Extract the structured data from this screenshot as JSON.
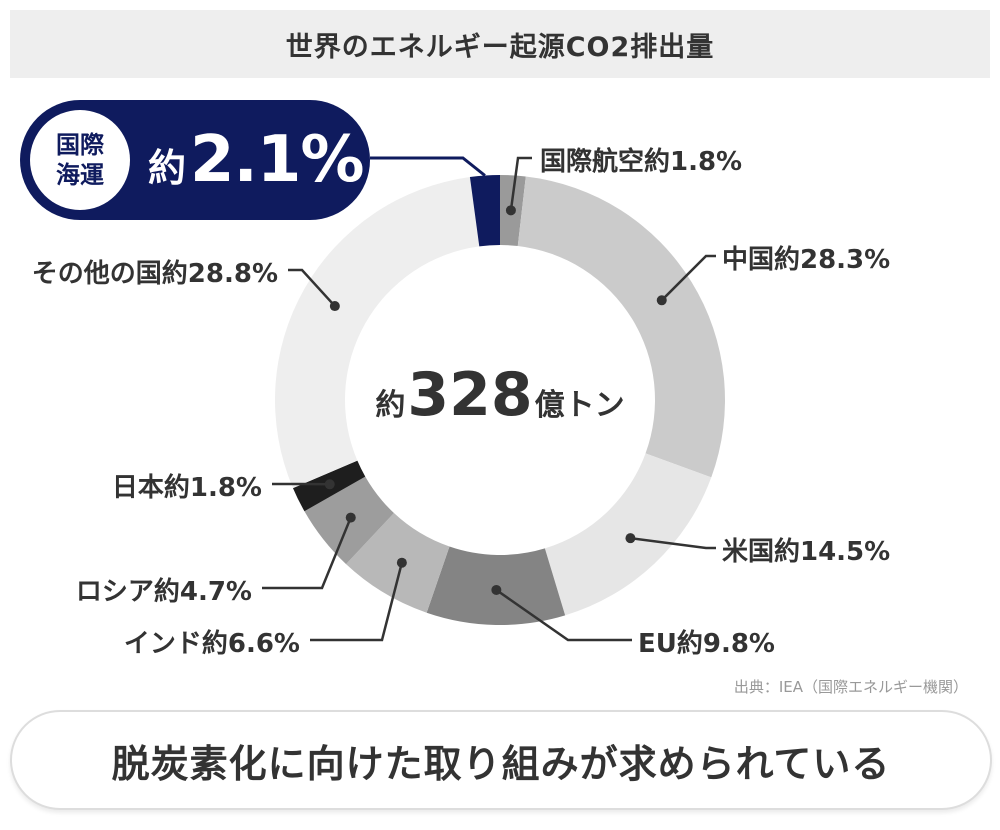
{
  "title": "世界のエネルギー起源CO2排出量",
  "center": {
    "prefix": "約",
    "value": "328",
    "unit": "億トン"
  },
  "highlight": {
    "label_line1": "国際",
    "label_line2": "海運",
    "prefix": "約",
    "value": "2.1%"
  },
  "source": "出典：IEA（国際エネルギー機関）",
  "footer": "脱炭素化に向けた取り組みが求められている",
  "colors": {
    "navy": "#0f1b5e"
  },
  "chart_data": {
    "type": "pie",
    "title": "世界のエネルギー起源CO2排出量",
    "total": "約328億トン",
    "slices": [
      {
        "name": "国際航空",
        "label": "国際航空約1.8%",
        "value": 1.8,
        "color": "#9a9a9a"
      },
      {
        "name": "中国",
        "label": "中国約28.3%",
        "value": 28.3,
        "color": "#cbcbcb"
      },
      {
        "name": "米国",
        "label": "米国約14.5%",
        "value": 14.5,
        "color": "#e6e6e6"
      },
      {
        "name": "EU",
        "label": "EU約9.8%",
        "value": 9.8,
        "color": "#848484"
      },
      {
        "name": "インド",
        "label": "インド約6.6%",
        "value": 6.6,
        "color": "#b8b8b8"
      },
      {
        "name": "ロシア",
        "label": "ロシア約4.7%",
        "value": 4.7,
        "color": "#9d9d9d"
      },
      {
        "name": "日本",
        "label": "日本約1.8%",
        "value": 1.8,
        "color": "#1e1e1e"
      },
      {
        "name": "その他の国",
        "label": "その他の国約28.8%",
        "value": 28.8,
        "color": "#eeeeee"
      },
      {
        "name": "国際海運",
        "label": "国際海運約2.1%",
        "value": 2.1,
        "color": "#0f1b5e"
      }
    ]
  }
}
